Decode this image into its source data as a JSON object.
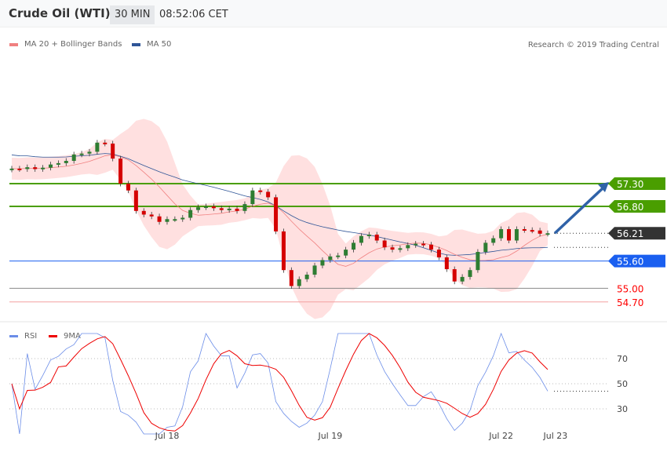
{
  "header": {
    "title": "Crude Oil (WTI)",
    "timeframe": "30 MIN",
    "time": "08:52:06 CET"
  },
  "legend": {
    "ma20": "MA 20 + Bollinger Bands",
    "ma50": "MA 50",
    "copyright": "Research © 2019 Trading Central"
  },
  "rsi_legend": {
    "rsi": "RSI",
    "ma": "9MA"
  },
  "colors": {
    "bull": "#2e7d32",
    "bear": "#d50000",
    "resistance": "#4a9e00",
    "support": "#1a5ff0",
    "last": "#333333",
    "arrow": "#2f62a8",
    "ma20": "#f08080",
    "ma50": "#2f5597",
    "band": "#ffe0e0"
  },
  "chart_data": {
    "type": "candlestick",
    "closes": [
      57.63,
      57.62,
      57.66,
      57.62,
      57.65,
      57.72,
      57.75,
      57.8,
      57.94,
      57.96,
      58.0,
      58.2,
      58.18,
      57.85,
      57.3,
      57.15,
      56.7,
      56.62,
      56.58,
      56.46,
      56.52,
      56.52,
      56.55,
      56.72,
      56.78,
      56.8,
      56.76,
      56.72,
      56.75,
      56.7,
      56.85,
      57.15,
      57.12,
      57.0,
      56.25,
      55.4,
      55.05,
      55.2,
      55.3,
      55.5,
      55.62,
      55.7,
      55.72,
      55.85,
      56.0,
      56.15,
      56.18,
      56.05,
      55.9,
      55.85,
      55.88,
      55.95,
      55.98,
      55.96,
      55.85,
      55.68,
      55.42,
      55.15,
      55.25,
      55.4,
      55.8,
      56.0,
      56.1,
      56.3,
      56.05,
      56.3,
      56.28,
      56.27,
      56.2,
      56.21
    ],
    "xticks": [
      {
        "label": "Jul 18",
        "index": 20
      },
      {
        "label": "Jul 19",
        "index": 41
      },
      {
        "label": "Jul 22",
        "index": 63
      },
      {
        "label": "Jul 23",
        "index": 70
      }
    ],
    "levels": [
      {
        "label": "57.30",
        "value": 57.3,
        "kind": "resistance"
      },
      {
        "label": "56.80",
        "value": 56.8,
        "kind": "resistance"
      },
      {
        "label": "56.21",
        "value": 56.21,
        "kind": "last"
      },
      {
        "label": "55.60",
        "value": 55.6,
        "kind": "support"
      },
      {
        "label": "55.00",
        "value": 55.0,
        "kind": "support2"
      },
      {
        "label": "54.70",
        "value": 54.7,
        "kind": "support3"
      }
    ],
    "target": 57.3,
    "rsi_ticks": [
      70,
      50,
      30
    ]
  }
}
